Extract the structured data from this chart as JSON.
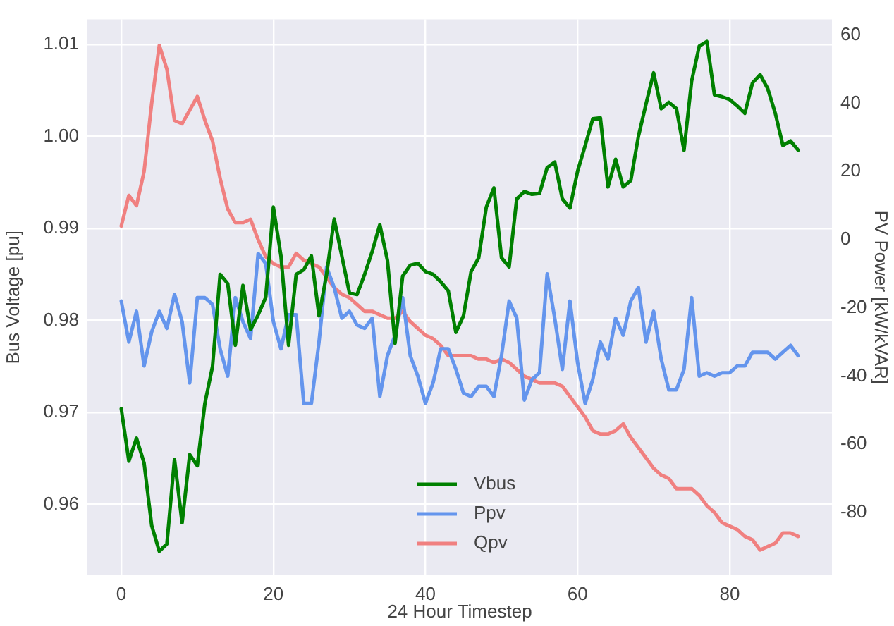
{
  "chart_data": {
    "type": "line",
    "xlabel": "24 Hour Timestep",
    "ylabel": "Bus Voltage [pu]",
    "y2label": "PV Power [kW/kVAR]",
    "x": [
      0,
      1,
      2,
      3,
      4,
      5,
      6,
      7,
      8,
      9,
      10,
      11,
      12,
      13,
      14,
      15,
      16,
      17,
      18,
      19,
      20,
      21,
      22,
      23,
      24,
      25,
      26,
      27,
      28,
      29,
      30,
      31,
      32,
      33,
      34,
      35,
      36,
      37,
      38,
      39,
      40,
      41,
      42,
      43,
      44,
      45,
      46,
      47,
      48,
      49,
      50,
      51,
      52,
      53,
      54,
      55,
      56,
      57,
      58,
      59,
      60,
      61,
      62,
      63,
      64,
      65,
      66,
      67,
      68,
      69,
      70,
      71,
      72,
      73,
      74,
      75,
      76,
      77,
      78,
      79,
      80,
      81,
      82,
      83,
      84,
      85,
      86,
      87,
      88,
      89
    ],
    "xlim": [
      -4.45,
      93.45
    ],
    "xticks": [
      0,
      20,
      40,
      60,
      80
    ],
    "ylim": [
      0.9523,
      1.0127
    ],
    "yticks": [
      {
        "value": 0.96,
        "label": "0.96"
      },
      {
        "value": 0.97,
        "label": "0.97"
      },
      {
        "value": 0.98,
        "label": "0.98"
      },
      {
        "value": 0.99,
        "label": "0.99"
      },
      {
        "value": 1.0,
        "label": "1.00"
      },
      {
        "value": 1.01,
        "label": "1.01"
      }
    ],
    "y2lim": [
      -98.4,
      64.6
    ],
    "y2ticks": [
      -80,
      -60,
      -40,
      -20,
      0,
      20,
      40,
      60
    ],
    "grid": true,
    "legend": "bottom",
    "series": [
      {
        "name": "Vbus",
        "color": "#008000",
        "values": [
          0.9704,
          0.9647,
          0.9672,
          0.9645,
          0.9577,
          0.9549,
          0.9557,
          0.9649,
          0.958,
          0.9654,
          0.9642,
          0.971,
          0.975,
          0.985,
          0.984,
          0.9773,
          0.9838,
          0.979,
          0.9806,
          0.9825,
          0.9923,
          0.987,
          0.9773,
          0.985,
          0.9855,
          0.987,
          0.9805,
          0.985,
          0.991,
          0.987,
          0.983,
          0.9828,
          0.985,
          0.9875,
          0.9904,
          0.9865,
          0.9775,
          0.9848,
          0.986,
          0.9862,
          0.9853,
          0.985,
          0.9842,
          0.9832,
          0.9787,
          0.9805,
          0.9853,
          0.9868,
          0.9923,
          0.9944,
          0.9868,
          0.9858,
          0.9932,
          0.994,
          0.9937,
          0.9938,
          0.9966,
          0.9972,
          0.9932,
          0.9922,
          0.9962,
          0.999,
          1.0019,
          1.002,
          0.9945,
          0.9975,
          0.9945,
          0.9952,
          1.0,
          1.0035,
          1.0069,
          1.003,
          1.0037,
          1.003,
          0.9985,
          1.006,
          1.0098,
          1.0103,
          1.0045,
          1.0043,
          1.004,
          1.0033,
          1.0025,
          1.0058,
          1.0067,
          1.0052,
          1.0025,
          0.999,
          0.9995,
          0.9985
        ]
      },
      {
        "name": "Ppv",
        "color": "#6495ed",
        "axis": "y2",
        "values": [
          -18,
          -30,
          -21,
          -37,
          -27,
          -21,
          -26,
          -16,
          -24,
          -42,
          -17,
          -17,
          -19,
          -32,
          -40,
          -17,
          -24,
          -29,
          -4,
          -7,
          -24,
          -32,
          -22,
          -22,
          -48,
          -48,
          -30,
          -8,
          -14,
          -23,
          -21,
          -25,
          -26,
          -23,
          -46,
          -34,
          -28,
          -17,
          -34,
          -40,
          -48,
          -42,
          -32,
          -32,
          -38,
          -45,
          -46,
          -43,
          -43,
          -46,
          -34,
          -18,
          -23,
          -47,
          -41,
          -39,
          -10,
          -23,
          -38,
          -18,
          -36,
          -48,
          -41,
          -30,
          -35,
          -23,
          -28,
          -18,
          -14,
          -30,
          -21,
          -35,
          -44,
          -44,
          -38,
          -17,
          -40,
          -39,
          -40,
          -39,
          -39,
          -37,
          -37,
          -33,
          -33,
          -33,
          -35,
          -33,
          -31,
          -34
        ]
      },
      {
        "name": "Qpv",
        "color": "#f08080",
        "axis": "y2",
        "values": [
          4,
          13,
          10,
          20,
          40,
          57,
          50,
          35,
          34,
          38,
          42,
          35,
          29,
          18,
          9,
          5,
          5,
          6,
          0,
          -5,
          -7,
          -8,
          -8,
          -4,
          -6,
          -7,
          -8,
          -11,
          -14,
          -16,
          -17,
          -19,
          -21,
          -21,
          -22,
          -23,
          -23,
          -21,
          -24,
          -26,
          -28,
          -29,
          -31,
          -34,
          -34,
          -34,
          -34,
          -35,
          -35,
          -36,
          -35,
          -36,
          -38,
          -40,
          -41,
          -42,
          -42,
          -42,
          -43,
          -46,
          -49,
          -52,
          -56,
          -57,
          -57,
          -56,
          -54,
          -58,
          -61,
          -64,
          -67,
          -69,
          -70,
          -73,
          -73,
          -73,
          -75,
          -78,
          -80,
          -83,
          -84,
          -85,
          -87,
          -88,
          -91,
          -90,
          -89,
          -86,
          -86,
          -87
        ]
      }
    ]
  }
}
